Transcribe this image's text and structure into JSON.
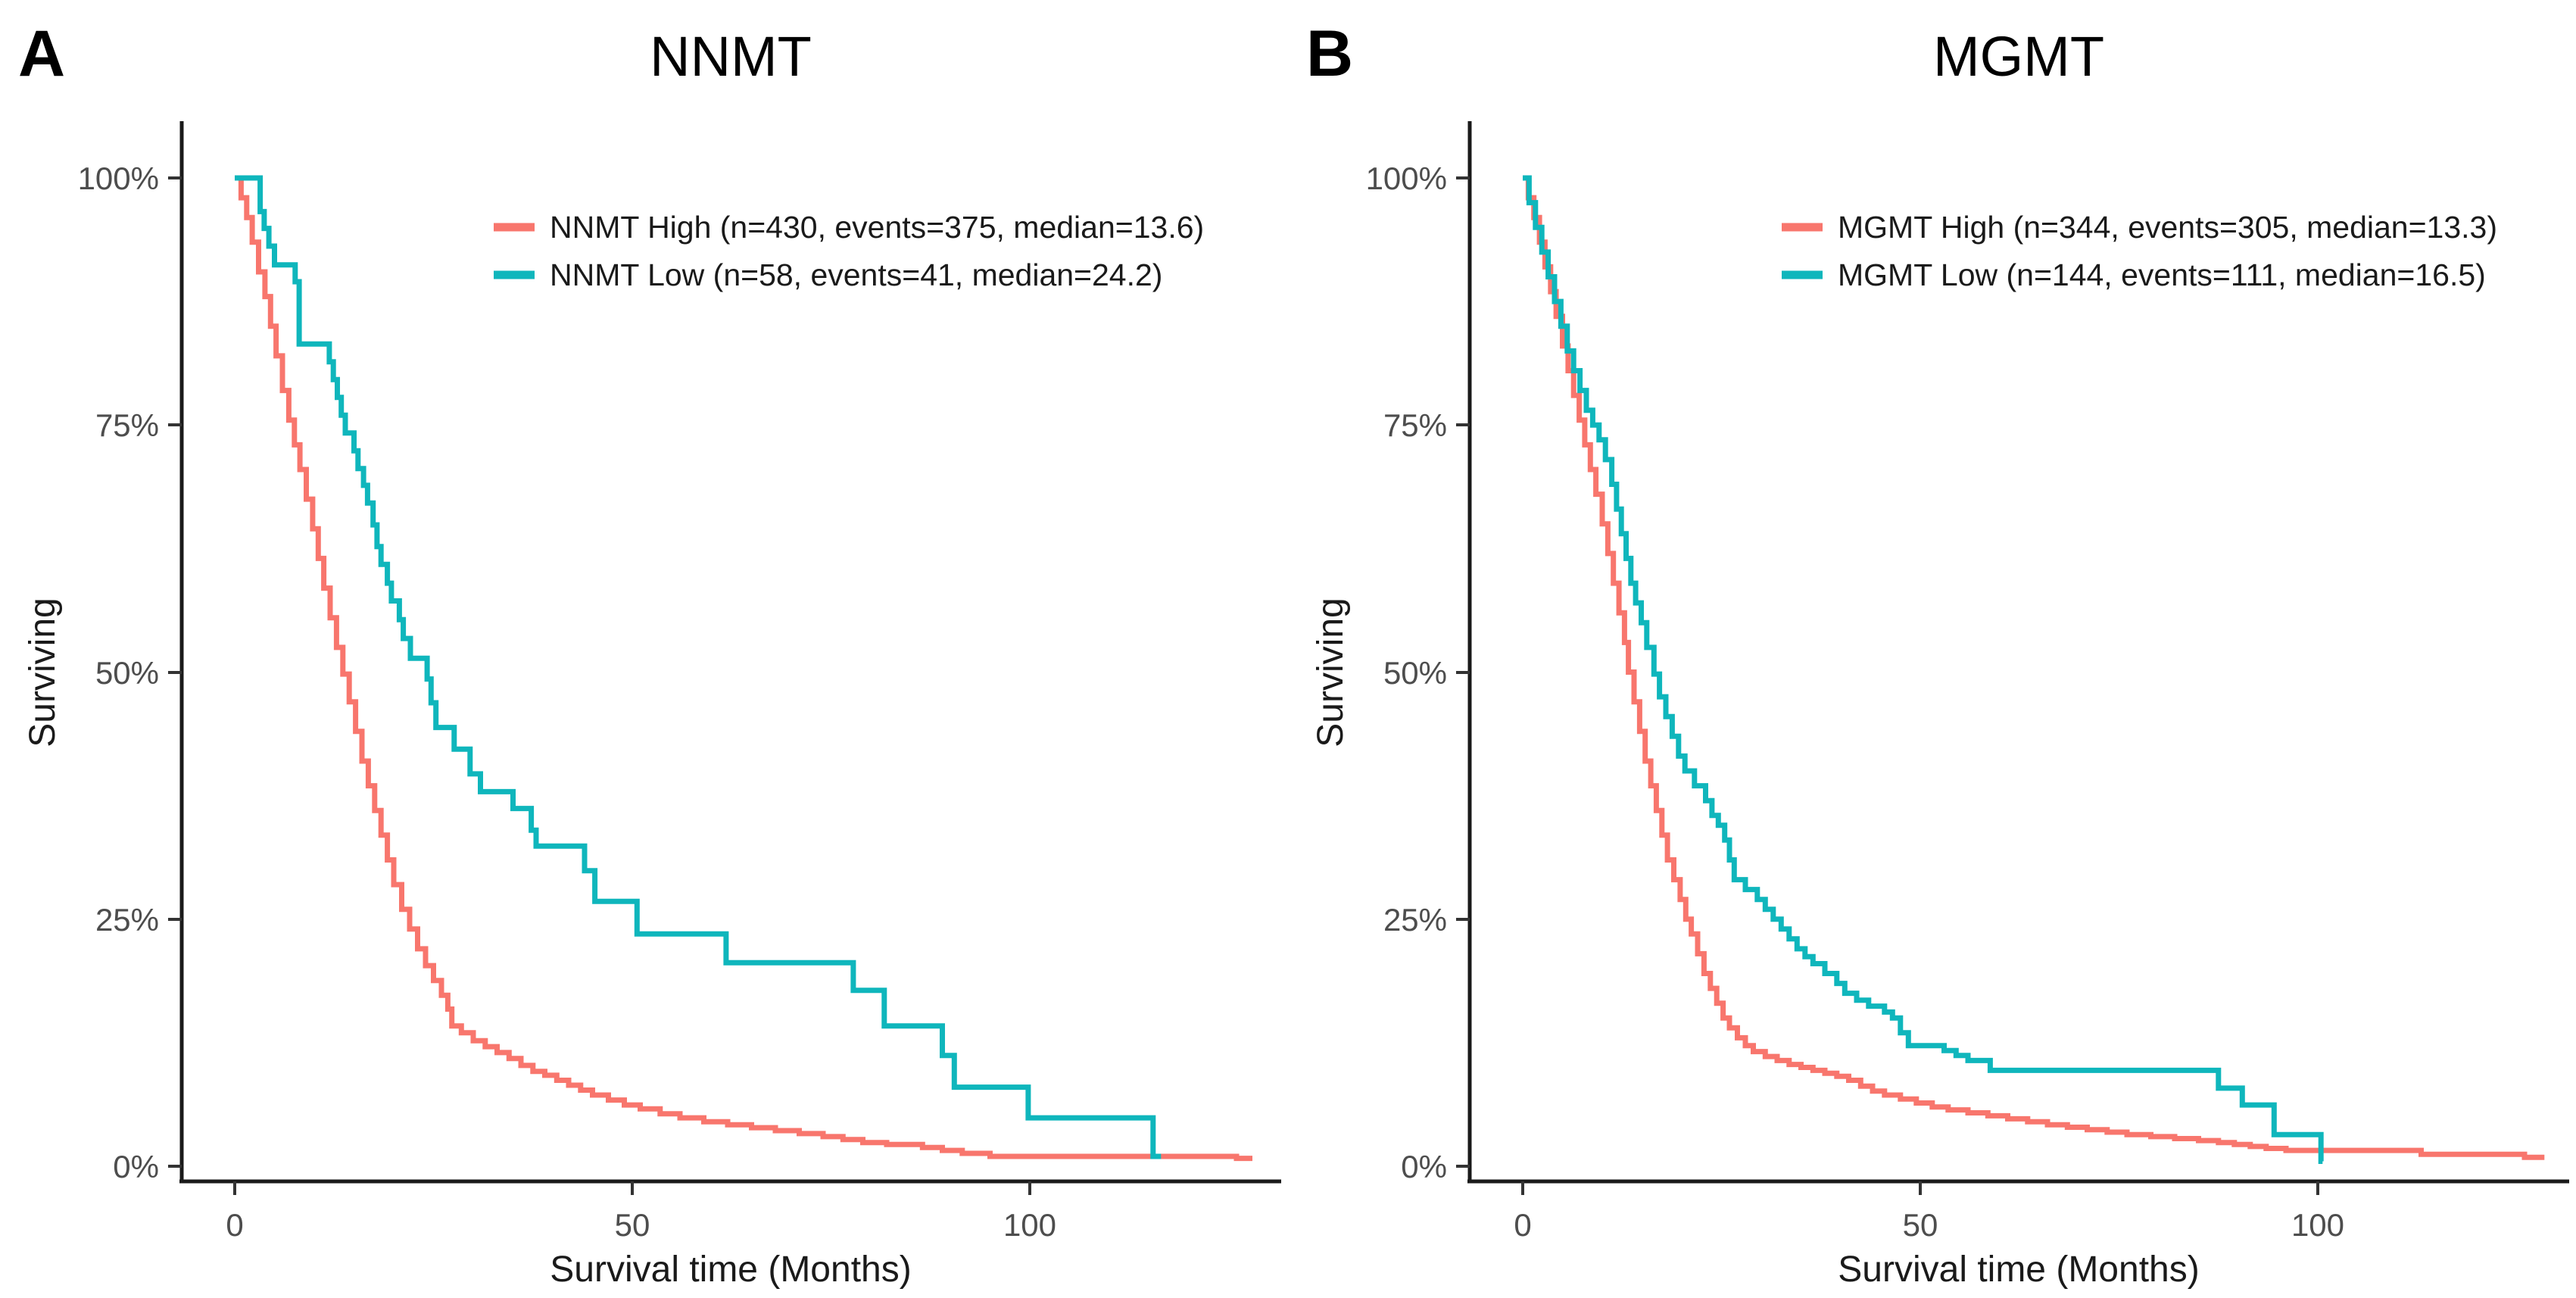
{
  "figure": {
    "background": "#ffffff",
    "accent_red": "#F8766D",
    "accent_teal": "#0FB6BC"
  },
  "panels": [
    {
      "letter": "A",
      "title": "NNMT",
      "xlabel": "Survival time (Months)",
      "ylabel": "Surviving",
      "x_tick_labels": [
        "0",
        "50",
        "100"
      ],
      "y_tick_labels": [
        "100%",
        "75%",
        "50%",
        "25%",
        "0%"
      ],
      "legend": [
        {
          "label": "NNMT High (n=430, events=375, median=13.6)",
          "color": "#F8766D"
        },
        {
          "label": "NNMT Low (n=58, events=41, median=24.2)",
          "color": "#0FB6BC"
        }
      ]
    },
    {
      "letter": "B",
      "title": "MGMT",
      "xlabel": "Survival time (Months)",
      "ylabel": "Surviving",
      "x_tick_labels": [
        "0",
        "50",
        "100"
      ],
      "y_tick_labels": [
        "100%",
        "75%",
        "50%",
        "25%",
        "0%"
      ],
      "legend": [
        {
          "label": "MGMT High (n=344, events=305, median=13.3)",
          "color": "#F8766D"
        },
        {
          "label": "MGMT Low (n=144, events=111, median=16.5)",
          "color": "#0FB6BC"
        }
      ]
    }
  ],
  "chart_data": [
    {
      "type": "line",
      "subtype": "kaplan-meier-step",
      "title": "NNMT",
      "xlabel": "Survival time (Months)",
      "ylabel": "Surviving",
      "xlim": [
        0,
        131
      ],
      "ylim": [
        0,
        100
      ],
      "x_ticks": [
        0,
        50,
        100
      ],
      "y_ticks": [
        0,
        25,
        50,
        75,
        100
      ],
      "grid": false,
      "legend_position": "top-right-inside",
      "series": [
        {
          "name": "NNMT High (n=430, events=375, median=13.6)",
          "n": 430,
          "events": 375,
          "median": 13.6,
          "color": "#F8766D",
          "end_month": 128,
          "points": [
            [
              0,
              100
            ],
            [
              0.8,
              98
            ],
            [
              1.5,
              96
            ],
            [
              2.2,
              93.5
            ],
            [
              3,
              90.5
            ],
            [
              3.8,
              88
            ],
            [
              4.5,
              85
            ],
            [
              5.2,
              82
            ],
            [
              6,
              78.5
            ],
            [
              6.8,
              75.5
            ],
            [
              7.5,
              73
            ],
            [
              8.2,
              70.5
            ],
            [
              9,
              67.5
            ],
            [
              9.8,
              64.5
            ],
            [
              10.5,
              61.5
            ],
            [
              11.2,
              58.5
            ],
            [
              12,
              55.5
            ],
            [
              12.8,
              52.5
            ],
            [
              13.6,
              49.8
            ],
            [
              14.4,
              47
            ],
            [
              15.2,
              44
            ],
            [
              16,
              41
            ],
            [
              16.8,
              38.5
            ],
            [
              17.6,
              36
            ],
            [
              18.4,
              33.5
            ],
            [
              19.2,
              31
            ],
            [
              20,
              28.5
            ],
            [
              21,
              26
            ],
            [
              22,
              24
            ],
            [
              23,
              22
            ],
            [
              24,
              20.3
            ],
            [
              25,
              18.8
            ],
            [
              26,
              17.3
            ],
            [
              26.8,
              15.9
            ],
            [
              27.3,
              14.2
            ],
            [
              28.5,
              13.5
            ],
            [
              30,
              12.7
            ],
            [
              31.5,
              12.1
            ],
            [
              33,
              11.5
            ],
            [
              34.5,
              10.9
            ],
            [
              36,
              10.2
            ],
            [
              37.5,
              9.6
            ],
            [
              39,
              9.2
            ],
            [
              40.5,
              8.7
            ],
            [
              42,
              8.2
            ],
            [
              43.5,
              7.7
            ],
            [
              45,
              7.2
            ],
            [
              47,
              6.7
            ],
            [
              49,
              6.2
            ],
            [
              51,
              5.8
            ],
            [
              53.5,
              5.3
            ],
            [
              56,
              4.9
            ],
            [
              59,
              4.5
            ],
            [
              62,
              4.2
            ],
            [
              65,
              3.9
            ],
            [
              68,
              3.6
            ],
            [
              71,
              3.3
            ],
            [
              74,
              3
            ],
            [
              76.5,
              2.7
            ],
            [
              79,
              2.4
            ],
            [
              82,
              2.2
            ],
            [
              86.5,
              1.9
            ],
            [
              89,
              1.6
            ],
            [
              91.5,
              1.3
            ],
            [
              95,
              1
            ],
            [
              126,
              0.8
            ]
          ]
        },
        {
          "name": "NNMT Low (n=58, events=41, median=24.2)",
          "n": 58,
          "events": 41,
          "median": 24.2,
          "color": "#0FB6BC",
          "end_month": 116.5,
          "points": [
            [
              0,
              100
            ],
            [
              3.2,
              96.6
            ],
            [
              3.7,
              94.9
            ],
            [
              4.3,
              93.1
            ],
            [
              5,
              91.2
            ],
            [
              7.6,
              89.5
            ],
            [
              8.1,
              83.2
            ],
            [
              11.9,
              81.4
            ],
            [
              12.4,
              79.6
            ],
            [
              12.9,
              77.8
            ],
            [
              13.4,
              76
            ],
            [
              13.9,
              74.2
            ],
            [
              15,
              72.4
            ],
            [
              15.5,
              70.6
            ],
            [
              16.2,
              68.9
            ],
            [
              16.7,
              67.1
            ],
            [
              17.4,
              64.9
            ],
            [
              17.9,
              62.7
            ],
            [
              18.4,
              60.9
            ],
            [
              19.2,
              59
            ],
            [
              19.7,
              57.2
            ],
            [
              20.7,
              55.3
            ],
            [
              21.2,
              53.4
            ],
            [
              22.1,
              51.4
            ],
            [
              24.2,
              49.3
            ],
            [
              24.7,
              46.9
            ],
            [
              25.3,
              44.4
            ],
            [
              27.6,
              42.2
            ],
            [
              29.6,
              39.7
            ],
            [
              30.9,
              37.9
            ],
            [
              35,
              36.2
            ],
            [
              37.3,
              34
            ],
            [
              37.9,
              32.4
            ],
            [
              44,
              29.9
            ],
            [
              45.3,
              26.8
            ],
            [
              50.6,
              23.5
            ],
            [
              61.8,
              20.6
            ],
            [
              77.8,
              17.8
            ],
            [
              81.7,
              14.2
            ],
            [
              89,
              11.2
            ],
            [
              90.5,
              8
            ],
            [
              99.8,
              4.9
            ],
            [
              115.5,
              1
            ]
          ]
        }
      ]
    },
    {
      "type": "line",
      "subtype": "kaplan-meier-step",
      "title": "MGMT",
      "xlabel": "Survival time (Months)",
      "ylabel": "Surviving",
      "xlim": [
        0,
        131
      ],
      "ylim": [
        0,
        100
      ],
      "x_ticks": [
        0,
        50,
        100
      ],
      "y_ticks": [
        0,
        25,
        50,
        75,
        100
      ],
      "grid": false,
      "legend_position": "top-right-inside",
      "series": [
        {
          "name": "MGMT High (n=344, events=305, median=13.3)",
          "n": 344,
          "events": 305,
          "median": 13.3,
          "color": "#F8766D",
          "end_month": 128.5,
          "points": [
            [
              0,
              100
            ],
            [
              0.7,
              98
            ],
            [
              1.4,
              96
            ],
            [
              2.1,
              93.5
            ],
            [
              2.8,
              91
            ],
            [
              3.5,
              88.5
            ],
            [
              4.2,
              86
            ],
            [
              5,
              83
            ],
            [
              5.7,
              80.5
            ],
            [
              6.4,
              78
            ],
            [
              7.1,
              75.5
            ],
            [
              7.8,
              73
            ],
            [
              8.5,
              70.5
            ],
            [
              9.2,
              68
            ],
            [
              10,
              65
            ],
            [
              10.7,
              62
            ],
            [
              11.4,
              59
            ],
            [
              12.1,
              56
            ],
            [
              12.8,
              53
            ],
            [
              13.3,
              50
            ],
            [
              14,
              47
            ],
            [
              14.7,
              44
            ],
            [
              15.4,
              41
            ],
            [
              16.1,
              38.5
            ],
            [
              16.8,
              36
            ],
            [
              17.5,
              33.5
            ],
            [
              18.2,
              31
            ],
            [
              19,
              29
            ],
            [
              19.8,
              27
            ],
            [
              20.5,
              25
            ],
            [
              21.2,
              23.5
            ],
            [
              22,
              21.5
            ],
            [
              22.8,
              19.5
            ],
            [
              23.6,
              18
            ],
            [
              24.4,
              16.5
            ],
            [
              25.2,
              15
            ],
            [
              26,
              14
            ],
            [
              27,
              13
            ],
            [
              28,
              12.2
            ],
            [
              29,
              11.6
            ],
            [
              30.5,
              11.1
            ],
            [
              32,
              10.7
            ],
            [
              33.5,
              10.3
            ],
            [
              35,
              10
            ],
            [
              36.5,
              9.7
            ],
            [
              38,
              9.4
            ],
            [
              39.5,
              9.1
            ],
            [
              41,
              8.7
            ],
            [
              42.5,
              8.1
            ],
            [
              44,
              7.6
            ],
            [
              45.5,
              7.2
            ],
            [
              47.5,
              6.8
            ],
            [
              49.5,
              6.4
            ],
            [
              51.5,
              6
            ],
            [
              53.5,
              5.7
            ],
            [
              56,
              5.4
            ],
            [
              58.5,
              5.1
            ],
            [
              61,
              4.8
            ],
            [
              63.5,
              4.5
            ],
            [
              66,
              4.2
            ],
            [
              68.5,
              3.95
            ],
            [
              71,
              3.7
            ],
            [
              73.5,
              3.45
            ],
            [
              76,
              3.2
            ],
            [
              79,
              3
            ],
            [
              82,
              2.8
            ],
            [
              85,
              2.6
            ],
            [
              87.5,
              2.4
            ],
            [
              89.5,
              2.2
            ],
            [
              91.5,
              2
            ],
            [
              93.5,
              1.8
            ],
            [
              96,
              1.6
            ],
            [
              113,
              1.2
            ],
            [
              126,
              0.9
            ]
          ]
        },
        {
          "name": "MGMT Low (n=144, events=111, median=16.5)",
          "n": 144,
          "events": 111,
          "median": 16.5,
          "color": "#0FB6BC",
          "end_month": 100.6,
          "points": [
            [
              0,
              100
            ],
            [
              0.8,
              97.5
            ],
            [
              1.6,
              95
            ],
            [
              2.4,
              92.5
            ],
            [
              3.2,
              90
            ],
            [
              4,
              87.5
            ],
            [
              4.8,
              85
            ],
            [
              5.6,
              82.5
            ],
            [
              6.4,
              80.5
            ],
            [
              7.2,
              78.5
            ],
            [
              8,
              76.5
            ],
            [
              8.8,
              75
            ],
            [
              9.6,
              73.5
            ],
            [
              10.4,
              71.5
            ],
            [
              11.2,
              69
            ],
            [
              11.8,
              66.5
            ],
            [
              12.4,
              64
            ],
            [
              13,
              61.5
            ],
            [
              13.6,
              59
            ],
            [
              14.2,
              57
            ],
            [
              14.9,
              55
            ],
            [
              15.6,
              52.5
            ],
            [
              16.5,
              49.8
            ],
            [
              17.2,
              47.5
            ],
            [
              18,
              45.5
            ],
            [
              18.8,
              43.5
            ],
            [
              19.6,
              41.5
            ],
            [
              20.4,
              40
            ],
            [
              21.6,
              38.5
            ],
            [
              23,
              37
            ],
            [
              23.8,
              35.5
            ],
            [
              24.6,
              34.5
            ],
            [
              25.4,
              33
            ],
            [
              26,
              31
            ],
            [
              26.6,
              29
            ],
            [
              28,
              28
            ],
            [
              29.5,
              27
            ],
            [
              30.5,
              26
            ],
            [
              31.5,
              25
            ],
            [
              32.5,
              24
            ],
            [
              33.5,
              23
            ],
            [
              34.5,
              22
            ],
            [
              35.5,
              21.2
            ],
            [
              36.5,
              20.5
            ],
            [
              38,
              19.5
            ],
            [
              39.5,
              18.5
            ],
            [
              40.5,
              17.5
            ],
            [
              42,
              16.8
            ],
            [
              43.5,
              16.2
            ],
            [
              45.5,
              15.6
            ],
            [
              46.5,
              15
            ],
            [
              47.5,
              13.5
            ],
            [
              48.5,
              12.2
            ],
            [
              53,
              11.7
            ],
            [
              54.5,
              11.2
            ],
            [
              56,
              10.7
            ],
            [
              58.8,
              9.7
            ],
            [
              87.5,
              7.9
            ],
            [
              90.5,
              6.2
            ],
            [
              94.5,
              3.2
            ],
            [
              100.4,
              0.5
            ]
          ]
        }
      ]
    }
  ]
}
